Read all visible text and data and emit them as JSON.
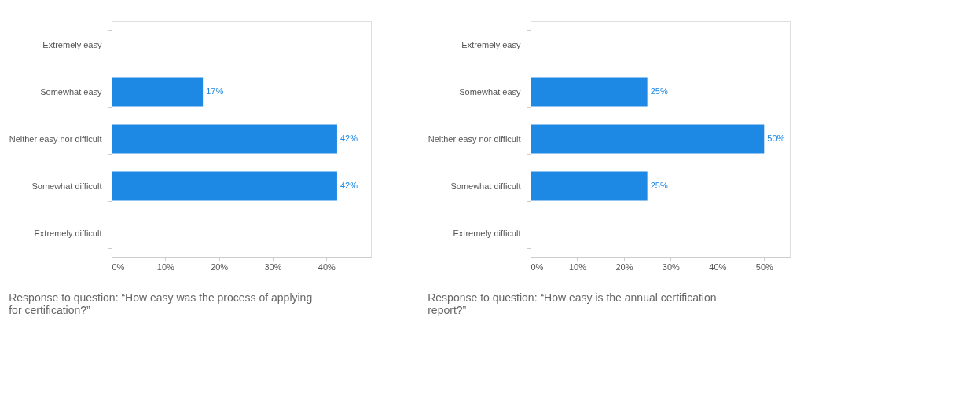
{
  "chart_data": [
    {
      "type": "bar",
      "orientation": "horizontal",
      "categories": [
        "Extremely easy",
        "Somewhat easy",
        "Neither easy nor difficult",
        "Somewhat difficult",
        "Extremely difficult"
      ],
      "values": [
        null,
        17,
        42,
        42,
        null
      ],
      "value_labels": [
        null,
        "17%",
        "42%",
        "42%",
        null
      ],
      "color": "#1e88e5",
      "xlim": [
        0,
        48.3
      ],
      "xticks": [
        {
          "value": 0,
          "label": "0%"
        },
        {
          "value": 10,
          "label": "10%"
        },
        {
          "value": 20,
          "label": "20%"
        },
        {
          "value": 30,
          "label": "30%"
        },
        {
          "value": 40,
          "label": "40%"
        }
      ],
      "grid": false,
      "annotations": [
        "Response to question: “How easy was the process of applying for certification?”"
      ]
    },
    {
      "type": "bar",
      "orientation": "horizontal",
      "categories": [
        "Extremely easy",
        "Somewhat easy",
        "Neither easy nor difficult",
        "Somewhat difficult",
        "Extremely difficult"
      ],
      "values": [
        null,
        25,
        50,
        25,
        null
      ],
      "value_labels": [
        null,
        "25%",
        "50%",
        "25%",
        null
      ],
      "color": "#1e88e5",
      "xlim": [
        0,
        55.5
      ],
      "xticks": [
        {
          "value": 0,
          "label": "0%"
        },
        {
          "value": 10,
          "label": "10%"
        },
        {
          "value": 20,
          "label": "20%"
        },
        {
          "value": 30,
          "label": "30%"
        },
        {
          "value": 40,
          "label": "40%"
        },
        {
          "value": 50,
          "label": "50%"
        }
      ],
      "grid": false,
      "annotations": [
        "Response to question: “How easy is the annual certification report?”"
      ]
    }
  ]
}
